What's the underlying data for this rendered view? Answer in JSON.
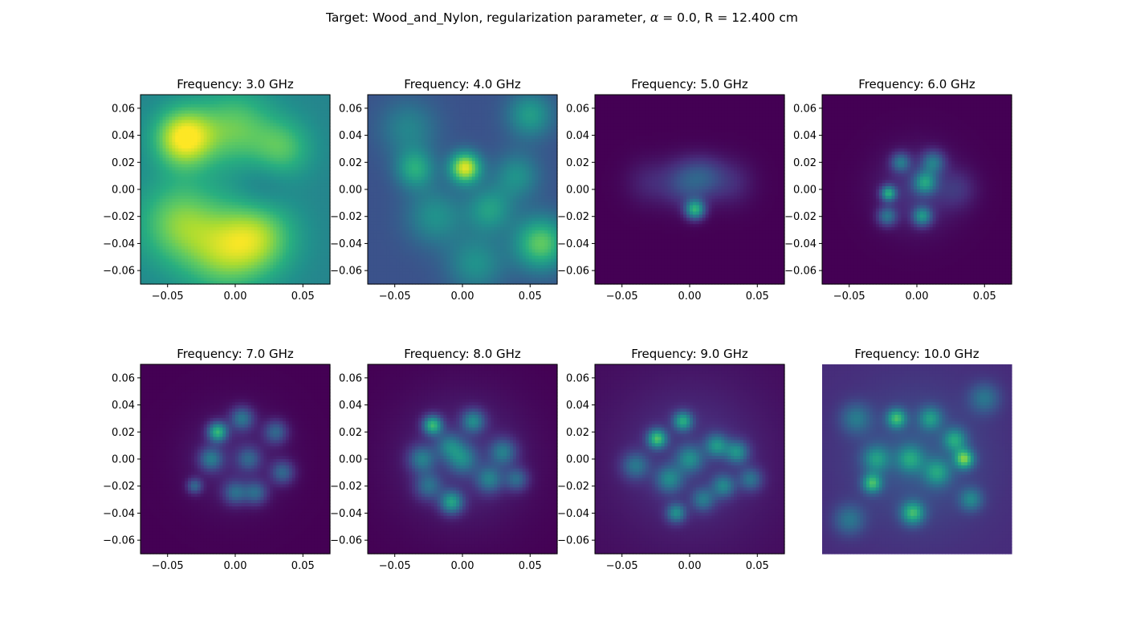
{
  "figure": {
    "title_prefix": "Target: Wood_and_Nylon, regularization parameter, ",
    "title_alpha_symbol": "α",
    "title_suffix": " = 0.0, R = 12.400 cm"
  },
  "colormap": [
    "#440154",
    "#472d7b",
    "#3b528b",
    "#2c728e",
    "#21918c",
    "#28ae80",
    "#5ec962",
    "#addc30",
    "#fde725"
  ],
  "chart_data": [
    {
      "type": "heatmap",
      "title": "Frequency: 3.0 GHz",
      "x_ticks": [
        "−0.05",
        "0.00",
        "0.05"
      ],
      "y_ticks": [
        "0.06",
        "0.04",
        "0.02",
        "0.00",
        "−0.02",
        "−0.04",
        "−0.06"
      ],
      "xlim": [
        -0.07,
        0.07
      ],
      "ylim": [
        -0.07,
        0.07
      ],
      "axes_visible": true,
      "background_level": 0.45,
      "features": [
        {
          "x": -0.038,
          "y": 0.038,
          "s": 0.015,
          "level": 0.55
        },
        {
          "x": 0.015,
          "y": -0.035,
          "s": 0.02,
          "level": 0.4
        },
        {
          "x": -0.04,
          "y": -0.025,
          "s": 0.022,
          "level": 0.35
        },
        {
          "x": 0.0,
          "y": 0.045,
          "s": 0.02,
          "level": 0.3
        },
        {
          "x": 0.035,
          "y": 0.03,
          "s": 0.015,
          "level": 0.25
        },
        {
          "x": -0.01,
          "y": -0.05,
          "s": 0.02,
          "level": 0.25
        },
        {
          "x": 0.02,
          "y": 0.0,
          "s": 0.015,
          "level": -0.1
        }
      ]
    },
    {
      "type": "heatmap",
      "title": "Frequency: 4.0 GHz",
      "x_ticks": [
        "−0.05",
        "0.00",
        "0.05"
      ],
      "y_ticks": [
        "0.06",
        "0.04",
        "0.02",
        "0.00",
        "−0.02",
        "−0.04",
        "−0.06"
      ],
      "xlim": [
        -0.07,
        0.07
      ],
      "ylim": [
        -0.07,
        0.07
      ],
      "axes_visible": true,
      "background_level": 0.25,
      "features": [
        {
          "x": 0.002,
          "y": 0.016,
          "s": 0.008,
          "level": 0.7
        },
        {
          "x": 0.058,
          "y": -0.04,
          "s": 0.014,
          "level": 0.5
        },
        {
          "x": -0.035,
          "y": 0.015,
          "s": 0.01,
          "level": 0.35
        },
        {
          "x": -0.04,
          "y": 0.045,
          "s": 0.015,
          "level": 0.2
        },
        {
          "x": 0.04,
          "y": 0.01,
          "s": 0.012,
          "level": 0.25
        },
        {
          "x": -0.02,
          "y": -0.02,
          "s": 0.015,
          "level": 0.25
        },
        {
          "x": 0.01,
          "y": -0.055,
          "s": 0.015,
          "level": 0.25
        },
        {
          "x": 0.05,
          "y": 0.055,
          "s": 0.012,
          "level": 0.3
        },
        {
          "x": 0.02,
          "y": -0.015,
          "s": 0.012,
          "level": 0.3
        }
      ]
    },
    {
      "type": "heatmap",
      "title": "Frequency: 5.0 GHz",
      "x_ticks": [
        "−0.05",
        "0.00",
        "0.05"
      ],
      "y_ticks": [
        "0.06",
        "0.04",
        "0.02",
        "0.00",
        "−0.02",
        "−0.04",
        "−0.06"
      ],
      "xlim": [
        -0.07,
        0.07
      ],
      "ylim": [
        -0.07,
        0.07
      ],
      "axes_visible": true,
      "background_level": 0.0,
      "features": [
        {
          "x": 0.004,
          "y": -0.015,
          "s": 0.005,
          "level": 0.6
        },
        {
          "x": -0.002,
          "y": 0.005,
          "s": 0.012,
          "level": 0.25
        },
        {
          "x": 0.03,
          "y": 0.005,
          "s": 0.012,
          "level": 0.12
        },
        {
          "x": -0.03,
          "y": 0.005,
          "s": 0.012,
          "level": 0.1
        },
        {
          "x": 0.012,
          "y": 0.01,
          "s": 0.01,
          "level": 0.15
        }
      ]
    },
    {
      "type": "heatmap",
      "title": "Frequency: 6.0 GHz",
      "x_ticks": [
        "−0.05",
        "0.00",
        "0.05"
      ],
      "y_ticks": [
        "0.06",
        "0.04",
        "0.02",
        "0.00",
        "−0.02",
        "−0.04",
        "−0.06"
      ],
      "xlim": [
        -0.07,
        0.07
      ],
      "ylim": [
        -0.07,
        0.07
      ],
      "axes_visible": true,
      "background_level": 0.0,
      "features": [
        {
          "x": -0.021,
          "y": -0.003,
          "s": 0.004,
          "level": 0.55
        },
        {
          "x": 0.006,
          "y": 0.005,
          "s": 0.006,
          "level": 0.45
        },
        {
          "x": 0.004,
          "y": -0.02,
          "s": 0.005,
          "level": 0.45
        },
        {
          "x": -0.012,
          "y": 0.02,
          "s": 0.005,
          "level": 0.35
        },
        {
          "x": -0.022,
          "y": -0.02,
          "s": 0.005,
          "level": 0.35
        },
        {
          "x": 0.012,
          "y": 0.02,
          "s": 0.006,
          "level": 0.35
        },
        {
          "x": 0.0,
          "y": 0.0,
          "s": 0.02,
          "level": 0.15
        },
        {
          "x": 0.03,
          "y": 0.0,
          "s": 0.01,
          "level": 0.12
        }
      ]
    },
    {
      "type": "heatmap",
      "title": "Frequency: 7.0 GHz",
      "x_ticks": [
        "−0.05",
        "0.00",
        "0.05"
      ],
      "y_ticks": [
        "0.06",
        "0.04",
        "0.02",
        "0.00",
        "−0.02",
        "−0.04",
        "−0.06"
      ],
      "xlim": [
        -0.07,
        0.07
      ],
      "ylim": [
        -0.07,
        0.07
      ],
      "axes_visible": true,
      "background_level": 0.0,
      "features": [
        {
          "x": -0.013,
          "y": 0.02,
          "s": 0.005,
          "level": 0.6
        },
        {
          "x": -0.018,
          "y": 0.0,
          "s": 0.006,
          "level": 0.35
        },
        {
          "x": 0.005,
          "y": 0.03,
          "s": 0.006,
          "level": 0.35
        },
        {
          "x": 0.03,
          "y": 0.02,
          "s": 0.006,
          "level": 0.3
        },
        {
          "x": 0.035,
          "y": -0.01,
          "s": 0.006,
          "level": 0.3
        },
        {
          "x": 0.0,
          "y": -0.025,
          "s": 0.006,
          "level": 0.3
        },
        {
          "x": 0.015,
          "y": -0.025,
          "s": 0.006,
          "level": 0.3
        },
        {
          "x": -0.03,
          "y": -0.02,
          "s": 0.004,
          "level": 0.3
        },
        {
          "x": 0.01,
          "y": 0.0,
          "s": 0.006,
          "level": 0.25
        },
        {
          "x": 0.0,
          "y": 0.0,
          "s": 0.025,
          "level": 0.1
        }
      ]
    },
    {
      "type": "heatmap",
      "title": "Frequency: 8.0 GHz",
      "x_ticks": [
        "−0.05",
        "0.00",
        "0.05"
      ],
      "y_ticks": [
        "0.06",
        "0.04",
        "0.02",
        "0.00",
        "−0.02",
        "−0.04",
        "−0.06"
      ],
      "xlim": [
        -0.07,
        0.07
      ],
      "ylim": [
        -0.07,
        0.07
      ],
      "axes_visible": true,
      "background_level": 0.0,
      "features": [
        {
          "x": -0.022,
          "y": 0.025,
          "s": 0.005,
          "level": 0.6
        },
        {
          "x": -0.008,
          "y": -0.032,
          "s": 0.006,
          "level": 0.5
        },
        {
          "x": 0.008,
          "y": 0.028,
          "s": 0.006,
          "level": 0.4
        },
        {
          "x": -0.03,
          "y": 0.0,
          "s": 0.007,
          "level": 0.35
        },
        {
          "x": 0.03,
          "y": 0.005,
          "s": 0.007,
          "level": 0.35
        },
        {
          "x": 0.0,
          "y": 0.0,
          "s": 0.008,
          "level": 0.35
        },
        {
          "x": -0.01,
          "y": 0.01,
          "s": 0.007,
          "level": 0.3
        },
        {
          "x": 0.02,
          "y": -0.015,
          "s": 0.007,
          "level": 0.35
        },
        {
          "x": 0.04,
          "y": -0.015,
          "s": 0.006,
          "level": 0.3
        },
        {
          "x": -0.025,
          "y": -0.02,
          "s": 0.007,
          "level": 0.3
        },
        {
          "x": 0.0,
          "y": 0.0,
          "s": 0.035,
          "level": 0.12
        }
      ]
    },
    {
      "type": "heatmap",
      "title": "Frequency: 9.0 GHz",
      "x_ticks": [
        "−0.05",
        "0.00",
        "0.05"
      ],
      "y_ticks": [
        "0.06",
        "0.04",
        "0.02",
        "0.00",
        "−0.02",
        "−0.04",
        "−0.06"
      ],
      "xlim": [
        -0.07,
        0.07
      ],
      "ylim": [
        -0.07,
        0.07
      ],
      "axes_visible": true,
      "background_level": 0.03,
      "features": [
        {
          "x": -0.024,
          "y": 0.015,
          "s": 0.005,
          "level": 0.6
        },
        {
          "x": -0.005,
          "y": 0.028,
          "s": 0.005,
          "level": 0.5
        },
        {
          "x": 0.02,
          "y": 0.01,
          "s": 0.006,
          "level": 0.4
        },
        {
          "x": 0.035,
          "y": 0.005,
          "s": 0.006,
          "level": 0.4
        },
        {
          "x": -0.01,
          "y": -0.04,
          "s": 0.005,
          "level": 0.4
        },
        {
          "x": 0.0,
          "y": 0.0,
          "s": 0.007,
          "level": 0.35
        },
        {
          "x": -0.015,
          "y": -0.015,
          "s": 0.007,
          "level": 0.35
        },
        {
          "x": 0.025,
          "y": -0.02,
          "s": 0.006,
          "level": 0.35
        },
        {
          "x": -0.04,
          "y": -0.005,
          "s": 0.007,
          "level": 0.3
        },
        {
          "x": 0.045,
          "y": -0.015,
          "s": 0.006,
          "level": 0.3
        },
        {
          "x": 0.01,
          "y": -0.03,
          "s": 0.006,
          "level": 0.3
        },
        {
          "x": 0.0,
          "y": 0.0,
          "s": 0.04,
          "level": 0.12
        }
      ]
    },
    {
      "type": "heatmap",
      "title": "Frequency: 10.0 GHz",
      "xlim": [
        -0.07,
        0.07
      ],
      "ylim": [
        -0.07,
        0.07
      ],
      "axes_visible": false,
      "background_level": 0.12,
      "features": [
        {
          "x": 0.035,
          "y": 0.0,
          "s": 0.005,
          "level": 0.6
        },
        {
          "x": -0.015,
          "y": 0.03,
          "s": 0.005,
          "level": 0.5
        },
        {
          "x": -0.003,
          "y": -0.04,
          "s": 0.006,
          "level": 0.5
        },
        {
          "x": -0.033,
          "y": -0.018,
          "s": 0.005,
          "level": 0.5
        },
        {
          "x": 0.028,
          "y": 0.014,
          "s": 0.006,
          "level": 0.4
        },
        {
          "x": 0.01,
          "y": 0.03,
          "s": 0.006,
          "level": 0.35
        },
        {
          "x": -0.005,
          "y": 0.0,
          "s": 0.007,
          "level": 0.35
        },
        {
          "x": 0.015,
          "y": -0.01,
          "s": 0.007,
          "level": 0.35
        },
        {
          "x": -0.03,
          "y": 0.0,
          "s": 0.007,
          "level": 0.35
        },
        {
          "x": 0.04,
          "y": -0.03,
          "s": 0.006,
          "level": 0.3
        },
        {
          "x": -0.045,
          "y": 0.03,
          "s": 0.008,
          "level": 0.25
        },
        {
          "x": -0.05,
          "y": -0.045,
          "s": 0.008,
          "level": 0.25
        },
        {
          "x": 0.05,
          "y": 0.045,
          "s": 0.008,
          "level": 0.25
        },
        {
          "x": 0.0,
          "y": 0.0,
          "s": 0.035,
          "level": 0.15
        }
      ]
    }
  ]
}
